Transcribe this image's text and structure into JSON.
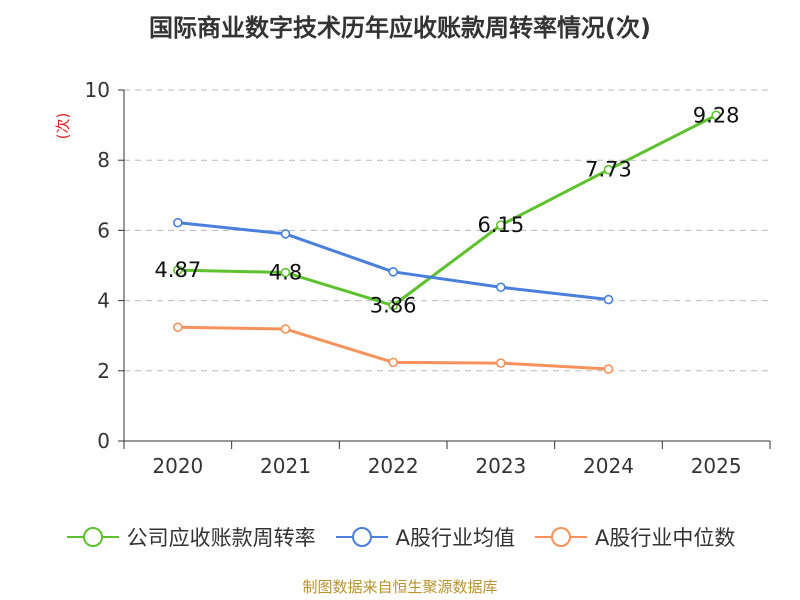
{
  "title": "国际商业数字技术历年应收账款周转率情况(次)",
  "source": "制图数据来自恒生聚源数据库",
  "chart_data": {
    "type": "line",
    "title": "国际商业数字技术历年应收账款周转率情况(次)",
    "ylabel": "(次)",
    "xlabel": "",
    "categories": [
      "2020",
      "2021",
      "2022",
      "2023",
      "2024",
      "2025"
    ],
    "ylim": [
      0,
      10
    ],
    "yticks": [
      "0",
      "2",
      "4",
      "6",
      "8",
      "10"
    ],
    "grid": true,
    "legend_position": "bottom",
    "series": [
      {
        "name": "公司应收账款周转率",
        "color": "#5ec12e",
        "values": [
          4.87,
          4.8,
          3.86,
          6.15,
          7.73,
          9.28
        ],
        "labels": [
          "4.87",
          "4.8",
          "3.86",
          "6.15",
          "7.73",
          "9.28"
        ]
      },
      {
        "name": "A股行业均值",
        "color": "#4a7fdc",
        "values": [
          6.22,
          5.9,
          4.82,
          4.38,
          4.03,
          null
        ]
      },
      {
        "name": "A股行业中位数",
        "color": "#f7925c",
        "values": [
          3.24,
          3.19,
          2.24,
          2.22,
          2.05,
          null
        ]
      }
    ]
  }
}
